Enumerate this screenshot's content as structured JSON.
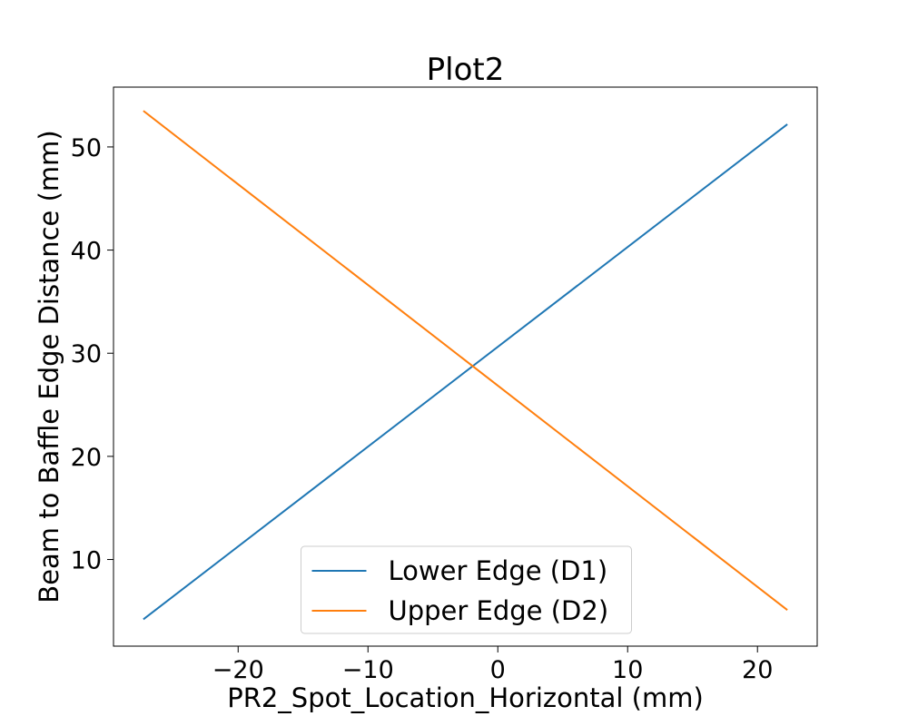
{
  "chart_data": {
    "type": "line",
    "title": "Plot2",
    "xlabel": "PR2_Spot_Location_Horizontal (mm)",
    "ylabel": "Beam to Baffle Edge Distance (mm)",
    "xlim": [
      -29.6,
      24.6
    ],
    "ylim": [
      1.6,
      55.8
    ],
    "xticks": [
      -20,
      -10,
      0,
      10,
      20
    ],
    "yticks": [
      10,
      20,
      30,
      40,
      50
    ],
    "xtick_labels": [
      "−20",
      "−10",
      "0",
      "10",
      "20"
    ],
    "ytick_labels": [
      "10",
      "20",
      "30",
      "40",
      "50"
    ],
    "grid": false,
    "legend_position": "lower-center",
    "series": [
      {
        "name": "Lower Edge (D1)",
        "color": "#1f77b4",
        "x": [
          -27.3,
          22.3
        ],
        "y": [
          4.2,
          52.2
        ]
      },
      {
        "name": "Upper Edge (D2)",
        "color": "#ff7f0e",
        "x": [
          -27.3,
          22.3
        ],
        "y": [
          53.5,
          5.1
        ]
      }
    ]
  }
}
